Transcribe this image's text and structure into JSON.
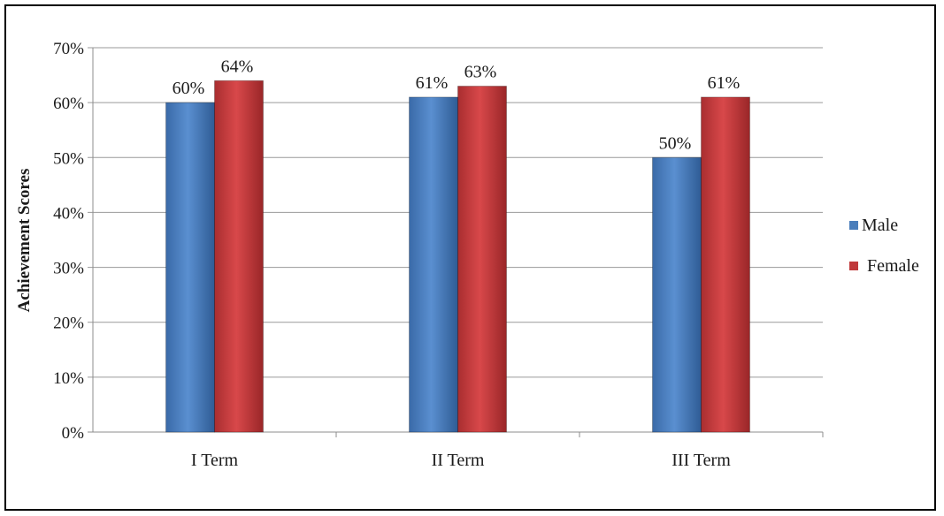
{
  "chart_data": {
    "type": "bar",
    "title": "",
    "xlabel": "",
    "ylabel": "Achievement Scores",
    "categories": [
      "I Term",
      "II Term",
      "III Term"
    ],
    "series": [
      {
        "name": "Male",
        "color": "#4a7ebb",
        "values": [
          60,
          61,
          50
        ],
        "labels": [
          "60%",
          "61%",
          "50%"
        ]
      },
      {
        "name": "Female",
        "color": "#c0393b",
        "values": [
          64,
          63,
          61
        ],
        "labels": [
          "64%",
          "63%",
          "61%"
        ]
      }
    ],
    "ylim": [
      0,
      70
    ],
    "yticks": [
      0,
      10,
      20,
      30,
      40,
      50,
      60,
      70
    ],
    "ytick_labels": [
      "0%",
      "10%",
      "20%",
      "30%",
      "40%",
      "50%",
      "60%",
      "70%"
    ],
    "grid": true,
    "legend_position": "right"
  }
}
